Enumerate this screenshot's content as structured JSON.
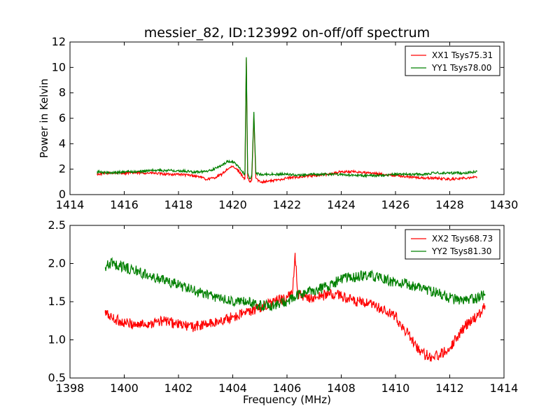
{
  "title": "messier_82, ID:123992 on-off/off spectrum",
  "chart_data": [
    {
      "type": "line",
      "title": "messier_82, ID:123992 on-off/off spectrum",
      "xlabel": "",
      "ylabel": "Power in Kelvin",
      "xlim": [
        1414,
        1430
      ],
      "ylim": [
        0,
        12
      ],
      "xticks": [
        "1414",
        "1416",
        "1418",
        "1420",
        "1422",
        "1424",
        "1426",
        "1428",
        "1430"
      ],
      "yticks": [
        "0",
        "2",
        "4",
        "6",
        "8",
        "10",
        "12"
      ],
      "grid": false,
      "legend": "top-right",
      "series": [
        {
          "name": "XX1 Tsys75.31",
          "color": "#ff0000",
          "x": [
            1415.0,
            1415.5,
            1416.0,
            1416.5,
            1417.0,
            1417.5,
            1418.0,
            1418.5,
            1418.8,
            1419.0,
            1419.3,
            1419.6,
            1419.8,
            1420.0,
            1420.2,
            1420.35,
            1420.45,
            1420.5,
            1420.55,
            1420.62,
            1420.7,
            1420.78,
            1420.85,
            1421.0,
            1421.5,
            1422.0,
            1422.5,
            1423.0,
            1423.5,
            1424.0,
            1424.5,
            1425.0,
            1425.5,
            1426.0,
            1426.5,
            1427.0,
            1427.5,
            1428.0,
            1428.5,
            1429.0
          ],
          "values": [
            1.6,
            1.7,
            1.7,
            1.7,
            1.7,
            1.6,
            1.6,
            1.5,
            1.4,
            1.2,
            1.3,
            1.6,
            2.0,
            2.2,
            1.9,
            1.5,
            1.2,
            10.7,
            1.3,
            1.0,
            1.1,
            6.3,
            1.3,
            1.0,
            1.1,
            1.3,
            1.4,
            1.5,
            1.6,
            1.8,
            1.8,
            1.7,
            1.6,
            1.5,
            1.4,
            1.3,
            1.3,
            1.2,
            1.3,
            1.4
          ]
        },
        {
          "name": "YY1 Tsys78.00",
          "color": "#008000",
          "x": [
            1415.0,
            1415.5,
            1416.0,
            1416.5,
            1417.0,
            1417.5,
            1418.0,
            1418.5,
            1419.0,
            1419.3,
            1419.6,
            1419.8,
            1420.0,
            1420.2,
            1420.35,
            1420.45,
            1420.5,
            1420.55,
            1420.62,
            1420.7,
            1420.78,
            1420.85,
            1421.0,
            1421.5,
            1422.0,
            1422.5,
            1423.0,
            1423.5,
            1424.0,
            1424.5,
            1425.0,
            1425.5,
            1426.0,
            1426.5,
            1427.0,
            1427.5,
            1428.0,
            1428.5,
            1429.0
          ],
          "values": [
            1.8,
            1.7,
            1.8,
            1.8,
            1.9,
            1.9,
            1.9,
            1.8,
            1.8,
            2.0,
            2.3,
            2.6,
            2.6,
            2.2,
            1.8,
            1.6,
            10.8,
            1.7,
            1.3,
            1.4,
            6.5,
            1.7,
            1.6,
            1.6,
            1.6,
            1.5,
            1.6,
            1.6,
            1.6,
            1.5,
            1.5,
            1.5,
            1.6,
            1.6,
            1.6,
            1.7,
            1.7,
            1.7,
            1.8
          ]
        }
      ]
    },
    {
      "type": "line",
      "title": "",
      "xlabel": "Frequency (MHz)",
      "ylabel": "",
      "xlim": [
        1398,
        1414
      ],
      "ylim": [
        0.5,
        2.5
      ],
      "xticks": [
        "1398",
        "1400",
        "1402",
        "1404",
        "1406",
        "1408",
        "1410",
        "1412",
        "1414"
      ],
      "yticks": [
        "0.5",
        "1.0",
        "1.5",
        "2.0",
        "2.5"
      ],
      "grid": false,
      "legend": "top-right",
      "series": [
        {
          "name": "XX2 Tsys68.73",
          "color": "#ff0000",
          "x": [
            1399.3,
            1399.6,
            1400.0,
            1400.5,
            1401.0,
            1401.5,
            1402.0,
            1402.5,
            1403.0,
            1403.5,
            1404.0,
            1404.5,
            1405.0,
            1405.5,
            1406.0,
            1406.2,
            1406.3,
            1406.4,
            1406.6,
            1407.0,
            1407.5,
            1408.0,
            1408.5,
            1409.0,
            1409.5,
            1410.0,
            1410.3,
            1410.6,
            1411.0,
            1411.3,
            1411.6,
            1412.0,
            1412.3,
            1412.6,
            1413.0,
            1413.3
          ],
          "values": [
            1.35,
            1.28,
            1.22,
            1.2,
            1.22,
            1.25,
            1.2,
            1.17,
            1.2,
            1.24,
            1.3,
            1.36,
            1.42,
            1.5,
            1.55,
            1.6,
            2.14,
            1.6,
            1.55,
            1.55,
            1.6,
            1.58,
            1.5,
            1.47,
            1.4,
            1.3,
            1.15,
            1.0,
            0.82,
            0.78,
            0.8,
            0.9,
            1.05,
            1.2,
            1.3,
            1.45
          ]
        },
        {
          "name": "YY2 Tsys81.30",
          "color": "#008000",
          "x": [
            1399.3,
            1399.5,
            1399.8,
            1400.0,
            1400.5,
            1401.0,
            1401.5,
            1402.0,
            1402.5,
            1403.0,
            1403.5,
            1404.0,
            1404.5,
            1405.0,
            1405.5,
            1406.0,
            1406.5,
            1407.0,
            1407.5,
            1408.0,
            1408.5,
            1409.0,
            1409.5,
            1410.0,
            1410.5,
            1411.0,
            1411.5,
            1412.0,
            1412.5,
            1413.0,
            1413.3
          ],
          "values": [
            1.95,
            2.0,
            1.98,
            1.95,
            1.9,
            1.82,
            1.78,
            1.72,
            1.65,
            1.6,
            1.55,
            1.5,
            1.5,
            1.45,
            1.45,
            1.5,
            1.6,
            1.65,
            1.7,
            1.8,
            1.82,
            1.85,
            1.8,
            1.75,
            1.72,
            1.68,
            1.62,
            1.55,
            1.5,
            1.55,
            1.6
          ]
        }
      ]
    }
  ]
}
